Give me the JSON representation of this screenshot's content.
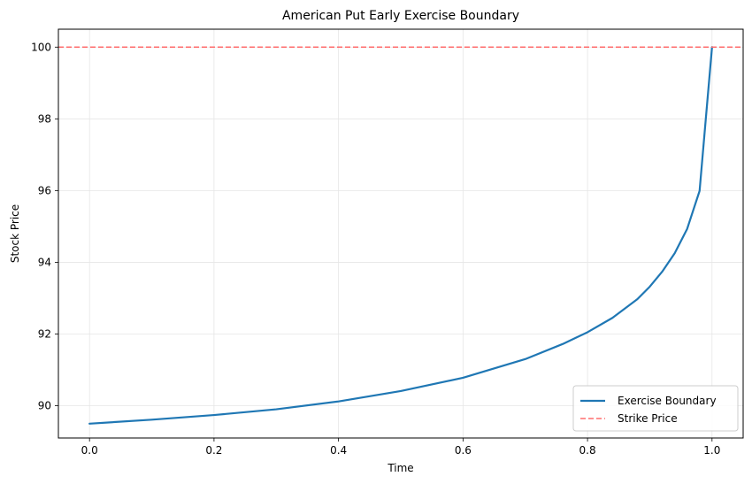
{
  "chart_data": {
    "type": "line",
    "title": "American Put Early Exercise Boundary",
    "xlabel": "Time",
    "ylabel": "Stock Price",
    "xlim": [
      -0.05,
      1.05
    ],
    "ylim": [
      89.1,
      100.5
    ],
    "x_ticks": [
      0.0,
      0.2,
      0.4,
      0.6,
      0.8,
      1.0
    ],
    "x_tick_labels": [
      "0.0",
      "0.2",
      "0.4",
      "0.6",
      "0.8",
      "1.0"
    ],
    "y_ticks": [
      90,
      92,
      94,
      96,
      98,
      100
    ],
    "y_tick_labels": [
      "90",
      "92",
      "94",
      "96",
      "98",
      "100"
    ],
    "grid": true,
    "legend_position": "lower right",
    "series": [
      {
        "name": "Exercise Boundary",
        "color": "#1f77b4",
        "style": "solid",
        "x": [
          0.0,
          0.1,
          0.2,
          0.3,
          0.4,
          0.5,
          0.6,
          0.7,
          0.76,
          0.8,
          0.84,
          0.88,
          0.9,
          0.92,
          0.94,
          0.96,
          0.98,
          0.99,
          1.0
        ],
        "y": [
          89.5,
          89.61,
          89.74,
          89.9,
          90.12,
          90.41,
          90.78,
          91.3,
          91.72,
          92.05,
          92.45,
          92.97,
          93.32,
          93.74,
          94.25,
          94.93,
          95.99,
          98.0,
          100.0
        ]
      },
      {
        "name": "Strike Price",
        "color": "#ff6e6e",
        "style": "dashed",
        "type": "hline",
        "y": 100
      }
    ]
  }
}
